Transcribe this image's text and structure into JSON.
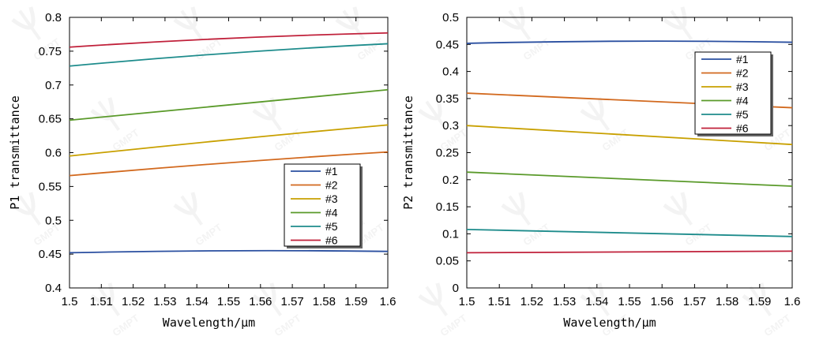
{
  "chart_data": [
    {
      "type": "line",
      "xlabel": "Wavelength/μm",
      "ylabel": "P1 transmittance",
      "xlim": [
        1.5,
        1.6
      ],
      "ylim": [
        0.4,
        0.8
      ],
      "xticks": [
        "1.5",
        "1.51",
        "1.52",
        "1.53",
        "1.54",
        "1.55",
        "1.56",
        "1.57",
        "1.58",
        "1.59",
        "1.6"
      ],
      "yticks": [
        "0.4",
        "0.45",
        "0.5",
        "0.55",
        "0.6",
        "0.65",
        "0.7",
        "0.75",
        "0.8"
      ],
      "legend_position": "lower-right",
      "x": [
        1.5,
        1.55,
        1.6
      ],
      "series": [
        {
          "name": "#1",
          "color": "#2a4fa0",
          "values": [
            0.452,
            0.455,
            0.454
          ]
        },
        {
          "name": "#2",
          "color": "#d2691e",
          "values": [
            0.566,
            0.585,
            0.601
          ]
        },
        {
          "name": "#3",
          "color": "#c8a000",
          "values": [
            0.595,
            0.619,
            0.641
          ]
        },
        {
          "name": "#4",
          "color": "#5a9a2a",
          "values": [
            0.648,
            0.671,
            0.693
          ]
        },
        {
          "name": "#5",
          "color": "#1e8c8c",
          "values": [
            0.728,
            0.747,
            0.761
          ]
        },
        {
          "name": "#6",
          "color": "#c0203a",
          "values": [
            0.756,
            0.769,
            0.777
          ]
        }
      ]
    },
    {
      "type": "line",
      "xlabel": "Wavelength/μm",
      "ylabel": "P2 transmittance",
      "xlim": [
        1.5,
        1.6
      ],
      "ylim": [
        0,
        0.5
      ],
      "xticks": [
        "1.5",
        "1.51",
        "1.52",
        "1.53",
        "1.54",
        "1.55",
        "1.56",
        "1.57",
        "1.58",
        "1.59",
        "1.6"
      ],
      "yticks": [
        "0",
        "0.05",
        "0.1",
        "0.15",
        "0.2",
        "0.25",
        "0.3",
        "0.35",
        "0.4",
        "0.45",
        "0.5"
      ],
      "legend_position": "upper-right",
      "x": [
        1.5,
        1.55,
        1.6
      ],
      "series": [
        {
          "name": "#1",
          "color": "#2a4fa0",
          "values": [
            0.452,
            0.456,
            0.454
          ]
        },
        {
          "name": "#2",
          "color": "#d2691e",
          "values": [
            0.36,
            0.347,
            0.333
          ]
        },
        {
          "name": "#3",
          "color": "#c8a000",
          "values": [
            0.3,
            0.283,
            0.265
          ]
        },
        {
          "name": "#4",
          "color": "#5a9a2a",
          "values": [
            0.214,
            0.201,
            0.188
          ]
        },
        {
          "name": "#5",
          "color": "#1e8c8c",
          "values": [
            0.108,
            0.101,
            0.095
          ]
        },
        {
          "name": "#6",
          "color": "#c0203a",
          "values": [
            0.065,
            0.066,
            0.068
          ]
        }
      ]
    }
  ],
  "watermark": "GMPT"
}
